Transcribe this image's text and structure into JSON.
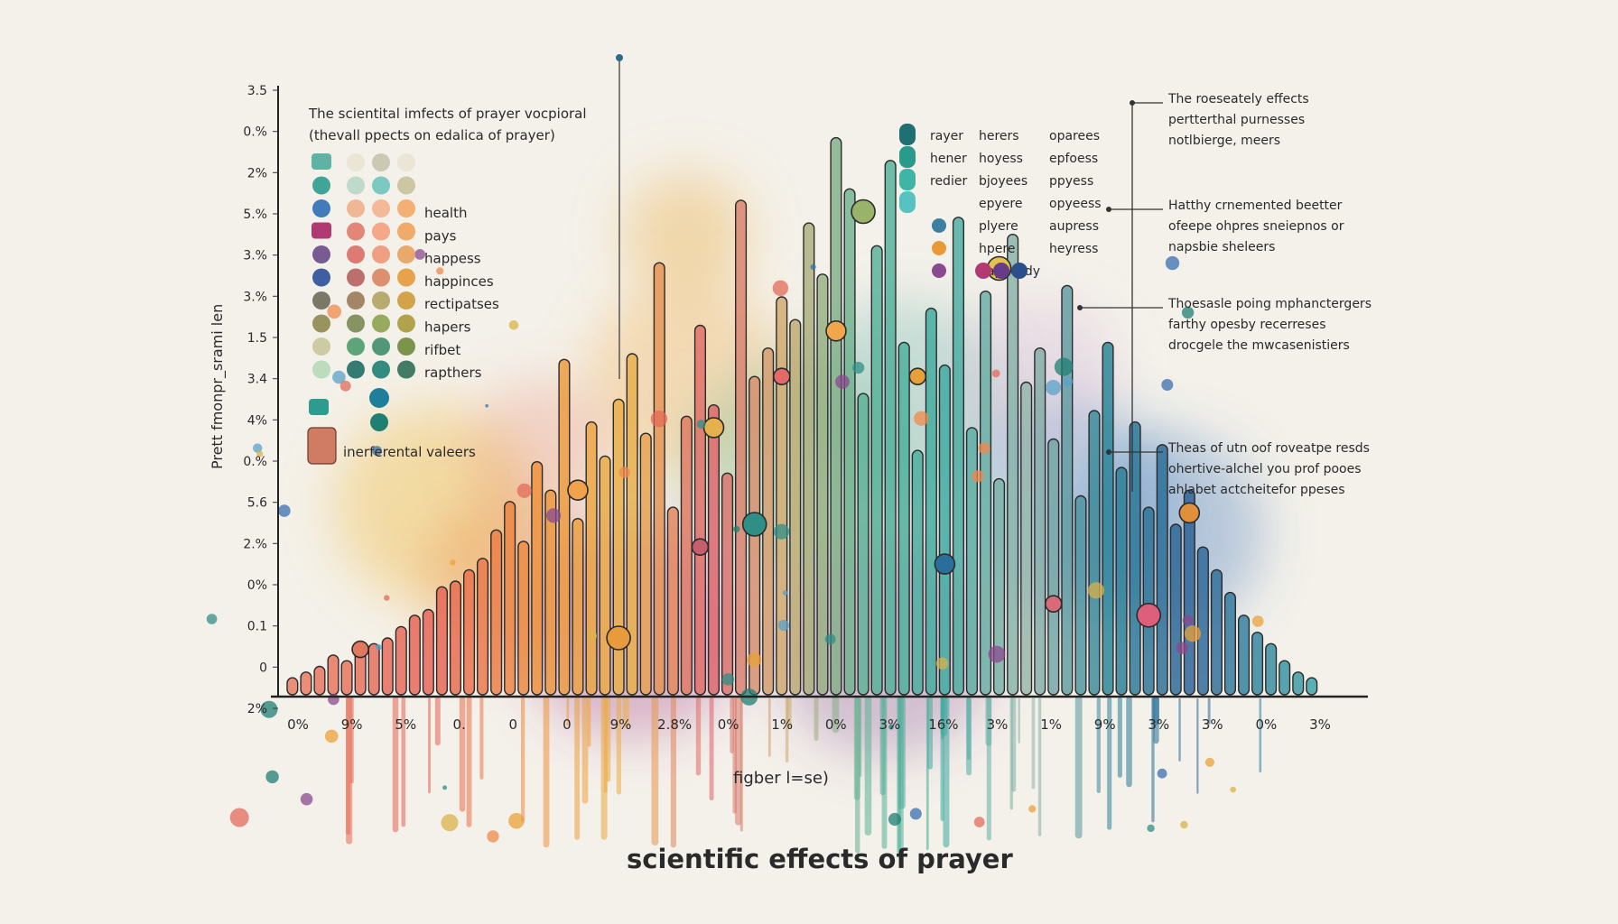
{
  "chart_data": {
    "type": "bar",
    "title": "scientific effects of prayer",
    "subtitle_lines": [
      "The scientital imfects of prayer vocpioral",
      "(thevall ppects on edalica of prayer)"
    ],
    "ylabel": "Prett fmonpr_srami len",
    "xlabel": "figber l=se)",
    "y_ticks": [
      "3.5",
      "0.%",
      "2%",
      "5.%",
      "3.%",
      "3.%",
      "1.5",
      "3.4",
      "4%",
      "0.%",
      "5.6",
      "2.%",
      "0%",
      "0.1",
      "0",
      "2%"
    ],
    "x_ticks": [
      "0%",
      "9%",
      "5%",
      "0.",
      "0",
      "0",
      "9%",
      "2.8%",
      "0%",
      "1%",
      "0%",
      "3%",
      "16%",
      "3%",
      "1%",
      "9%",
      "3%",
      "3%",
      "0%",
      "3%"
    ],
    "ylim": [
      0,
      100
    ],
    "values": [
      3,
      4,
      5,
      7,
      6,
      8,
      9,
      10,
      12,
      14,
      15,
      19,
      20,
      22,
      24,
      29,
      34,
      27,
      41,
      36,
      59,
      31,
      48,
      42,
      52,
      60,
      46,
      76,
      33,
      49,
      65,
      51,
      39,
      87,
      56,
      61,
      70,
      66,
      83,
      74,
      98,
      89,
      53,
      79,
      94,
      62,
      43,
      68,
      58,
      84,
      47,
      71,
      38,
      81,
      55,
      61,
      45,
      72,
      35,
      50,
      62,
      40,
      48,
      33,
      44,
      30,
      36,
      26,
      22,
      18,
      14,
      11,
      9,
      6,
      4,
      3
    ],
    "markers": [
      {
        "index": 5,
        "value": 8
      },
      {
        "index": 21,
        "value": 36
      },
      {
        "index": 24,
        "value": 10
      },
      {
        "index": 30,
        "value": 26
      },
      {
        "index": 31,
        "value": 47
      },
      {
        "index": 34,
        "value": 30
      },
      {
        "index": 36,
        "value": 56
      },
      {
        "index": 40,
        "value": 64
      },
      {
        "index": 42,
        "value": 85
      },
      {
        "index": 46,
        "value": 56
      },
      {
        "index": 48,
        "value": 23
      },
      {
        "index": 52,
        "value": 75
      },
      {
        "index": 56,
        "value": 16
      },
      {
        "index": 66,
        "value": 32
      },
      {
        "index": 63,
        "value": 14
      }
    ],
    "legend_left": {
      "items": [
        "health",
        "pays",
        "happess",
        "happinces",
        "rectipatses",
        "hapers",
        "rifbet",
        "rapthers"
      ],
      "footer": "inerferental valeers",
      "rows": [
        [
          "#5fb3a3",
          "#e9e3d2",
          "#c7c3ae",
          "#e9e3d2"
        ],
        [
          "#2c9c8e",
          "#b9d7c8",
          "#6fc3be",
          "#c8c29a"
        ],
        [
          "#2f6db5",
          "#f0b08c",
          "#f3b38f",
          "#f4a867"
        ],
        [
          "#b23a72",
          "#e07a6c",
          "#f3a07e",
          "#f0a25b"
        ],
        [
          "#6a4a86",
          "#d96d66",
          "#ee9677",
          "#e9a15e"
        ],
        [
          "#2c4f9b",
          "#b7605f",
          "#d9855f",
          "#e59a3b"
        ],
        [
          "#6f6a5a",
          "#9a7a5a",
          "#b1a363",
          "#cf9a3a"
        ],
        [
          "#8f8a4e",
          "#7b8a52",
          "#8ea24e",
          "#a89a3b"
        ],
        [
          "#c9c69a",
          "#4f9a6f",
          "#3f8e6c",
          "#6e8a3a"
        ],
        [
          "#b7d9b8",
          "#1f6f64",
          "#1f7f73",
          "#2f6f55"
        ]
      ]
    },
    "legend_right": [
      {
        "cols": [
          "rayer",
          "herers",
          "oparees"
        ]
      },
      {
        "cols": [
          "hener",
          "hoyess",
          "epfoess"
        ]
      },
      {
        "cols": [
          "redier",
          "bjoyees",
          "ppyess"
        ]
      },
      {
        "cols": [
          "epyere",
          "opyeess"
        ]
      },
      {
        "cols": [
          "plyere",
          "aupress"
        ]
      },
      {
        "cols": [
          "hpere",
          "heyress"
        ]
      },
      {
        "cols": [
          "hapeesdy"
        ]
      }
    ],
    "annotations": [
      [
        "The roeseately effects",
        "pertterthal purnesses",
        "notlbierge, meers"
      ],
      [
        "Hatthy crnemented beetter",
        "ofeepe ohpres sneiepnos or",
        "napsbie sheleers"
      ],
      [
        "Thoesasle poing mphanctergers",
        "farthy opesby recerreses",
        "drocgele the mwcasenistiers"
      ],
      [
        "Theas of utn oof roveatpe resds",
        "ohertive-alchel you prof pooes",
        "ahlabet actcheitefor ppeses"
      ]
    ]
  }
}
